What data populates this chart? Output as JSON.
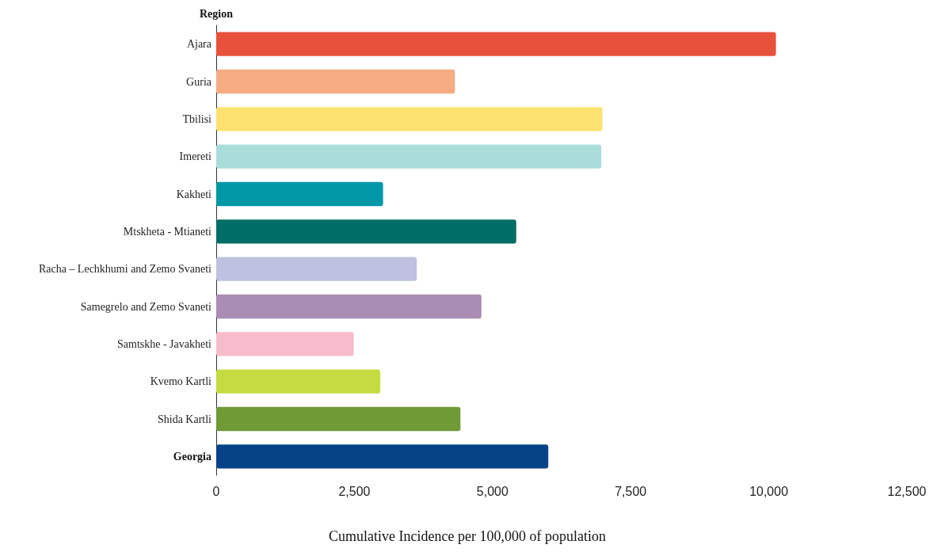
{
  "chart_data": {
    "type": "bar",
    "orientation": "horizontal",
    "ylabel": "Region",
    "xlabel": "Cumulative Incidence per 100,000 of population",
    "categories": [
      "Ajara",
      "Guria",
      "Tbilisi",
      "Imereti",
      "Kakheti",
      "Mtskheta - Mtianeti",
      "Racha – Lechkhumi and Zemo Svaneti",
      "Samegrelo and Zemo Svaneti",
      "Samtskhe - Javakheti",
      "Kvemo Kartli",
      "Shida Kartli",
      "Georgia"
    ],
    "values": [
      10130,
      4320,
      6990,
      6970,
      3020,
      5430,
      3630,
      4800,
      2490,
      2970,
      4420,
      6010
    ],
    "colors": [
      "#e8513b",
      "#f6ac82",
      "#fde272",
      "#a9ddd9",
      "#0097a7",
      "#006d66",
      "#bcc2e0",
      "#a98db4",
      "#f7bccb",
      "#c4dc40",
      "#6f9a35",
      "#064386"
    ],
    "xlim": [
      0,
      12500
    ],
    "xticks": [
      0,
      {
        "value": 2500,
        "label": "2,500"
      },
      {
        "value": 5000,
        "label": "5,000"
      },
      {
        "value": 7500,
        "label": "7,500"
      },
      {
        "value": 10000,
        "label": "10,000"
      },
      {
        "value": 12500,
        "label": "12,500"
      }
    ]
  }
}
